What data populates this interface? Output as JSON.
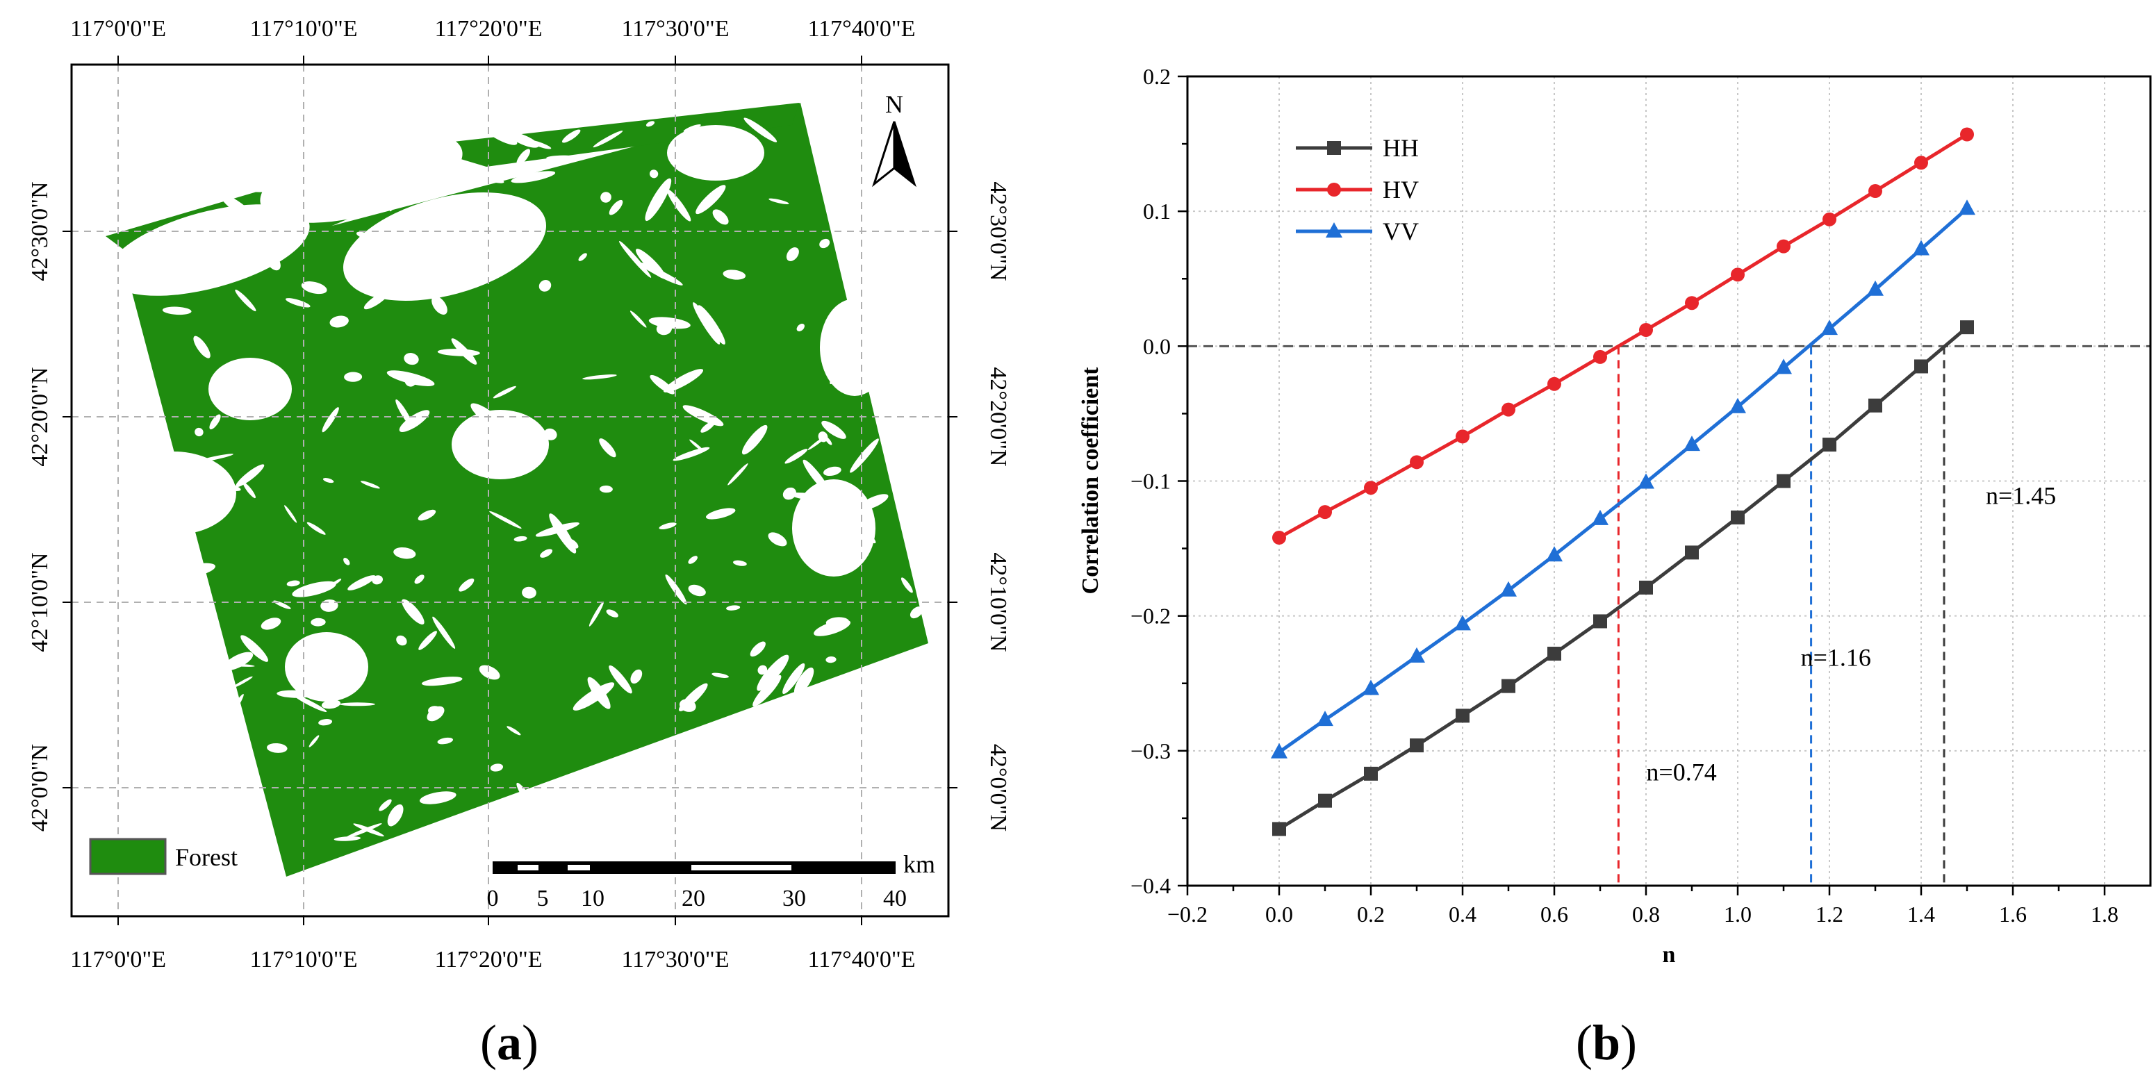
{
  "panel_a": {
    "label_open": "(",
    "label_letter": "a",
    "label_close": ")",
    "north_label": "N",
    "legend_label": "Forest",
    "scale_unit": "km",
    "scale_ticks": [
      "0",
      "5",
      "10",
      "20",
      "30",
      "40"
    ],
    "lon_ticks": [
      "117°0'0\"E",
      "117°10'0\"E",
      "117°20'0\"E",
      "117°30'0\"E",
      "117°40'0\"E"
    ],
    "lat_ticks": [
      "42°30'0\"N",
      "42°20'0\"N",
      "42°10'0\"N",
      "42°0'0\"N"
    ],
    "colors": {
      "forest": "#1f8c0f",
      "frame": "#000000",
      "grid": "#b0b0b0"
    }
  },
  "panel_b": {
    "label_open": "(",
    "label_letter": "b",
    "label_close": ")"
  },
  "chart_data": {
    "type": "line",
    "xlabel": "n",
    "ylabel": "Correlation coefficient",
    "xlim": [
      -0.2,
      1.9
    ],
    "ylim": [
      -0.4,
      0.2
    ],
    "grid": true,
    "legend_position": "top-left",
    "x_ticks": [
      "-0.2",
      "0.0",
      "0.2",
      "0.4",
      "0.6",
      "0.8",
      "1.0",
      "1.2",
      "1.4",
      "1.6",
      "1.8"
    ],
    "y_ticks": [
      "0.2",
      "0.1",
      "0.0",
      "-0.1",
      "-0.2",
      "-0.3",
      "-0.4"
    ],
    "x": [
      0.0,
      0.1,
      0.2,
      0.3,
      0.4,
      0.5,
      0.6,
      0.7,
      0.8,
      0.9,
      1.0,
      1.1,
      1.2,
      1.3,
      1.4,
      1.5
    ],
    "series": [
      {
        "name": "HH",
        "marker": "square",
        "color": "#3c3c3c",
        "values": [
          -0.358,
          -0.337,
          -0.317,
          -0.296,
          -0.274,
          -0.252,
          -0.228,
          -0.204,
          -0.179,
          -0.153,
          -0.127,
          -0.1,
          -0.073,
          -0.044,
          -0.015,
          0.014
        ]
      },
      {
        "name": "HV",
        "marker": "circle",
        "color": "#e8262b",
        "values": [
          -0.142,
          -0.123,
          -0.105,
          -0.086,
          -0.067,
          -0.047,
          -0.028,
          -0.008,
          0.012,
          0.032,
          0.053,
          0.074,
          0.094,
          0.115,
          0.136,
          0.157
        ]
      },
      {
        "name": "VV",
        "marker": "triangle",
        "color": "#1f6fd6",
        "values": [
          -0.301,
          -0.277,
          -0.254,
          -0.23,
          -0.206,
          -0.181,
          -0.155,
          -0.128,
          -0.101,
          -0.073,
          -0.045,
          -0.016,
          0.013,
          0.042,
          0.072,
          0.102
        ]
      }
    ],
    "reference_lines": [
      {
        "label": "n=0.74",
        "x": 0.74,
        "color": "#e8262b"
      },
      {
        "label": "n=1.16",
        "x": 1.16,
        "color": "#1f6fd6"
      },
      {
        "label": "n=1.45",
        "x": 1.45,
        "color": "#3c3c3c"
      }
    ],
    "zero_line_color": "#555555"
  }
}
